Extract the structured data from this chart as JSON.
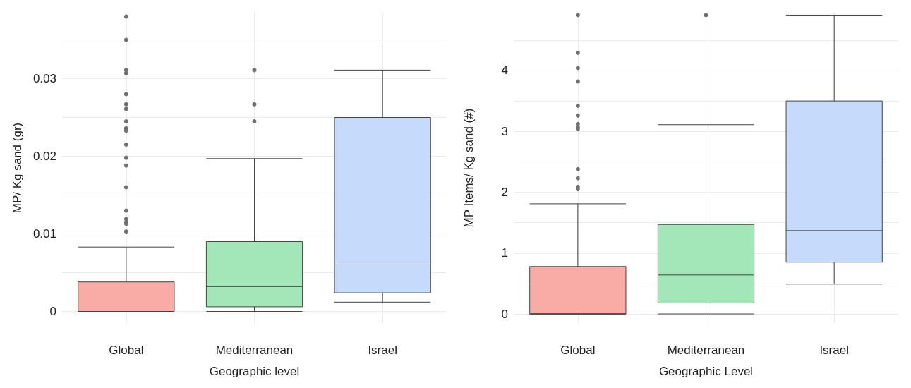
{
  "chart_data": [
    {
      "type": "box",
      "xlabel": "Geographic level",
      "ylabel": "MP/ Kg sand (gr)",
      "categories": [
        "Global",
        "Mediterranean",
        "Israel"
      ],
      "colors": [
        "#f9aca6",
        "#a3e6b8",
        "#c6dbfb"
      ],
      "boxes": [
        {
          "low": 0,
          "q1": 0,
          "median": 0,
          "q3": 0.0038,
          "high": 0.0083,
          "outliers": [
            0.0103,
            0.0113,
            0.0115,
            0.0119,
            0.013,
            0.016,
            0.0188,
            0.0198,
            0.0215,
            0.0233,
            0.0236,
            0.0245,
            0.0261,
            0.0267,
            0.028,
            0.0307,
            0.0311,
            0.035,
            0.038
          ]
        },
        {
          "low": 0,
          "q1": 0.0006,
          "median": 0.0032,
          "q3": 0.009,
          "high": 0.0197,
          "outliers": [
            0.0245,
            0.0267,
            0.0311
          ]
        },
        {
          "low": 0.0012,
          "q1": 0.0024,
          "median": 0.006,
          "q3": 0.025,
          "high": 0.0311
        }
      ],
      "ylim": [
        -0.0015,
        0.0385
      ],
      "yticks": [
        0,
        {
          "value": 0.005,
          "label": null
        },
        0.01,
        {
          "value": 0.015,
          "label": null
        },
        0.02,
        {
          "value": 0.025,
          "label": null
        },
        0.03,
        {
          "value": 0.035,
          "label": null
        }
      ],
      "grid": true
    },
    {
      "type": "box",
      "xlabel": "Geographic Level",
      "ylabel": "MP Items/ Kg sand (#)",
      "categories": [
        "Global",
        "Mediterranean",
        "Israel"
      ],
      "colors": [
        "#f9aca6",
        "#a3e6b8",
        "#c6dbfb"
      ],
      "boxes": [
        {
          "low": 0,
          "q1": 0,
          "median": 0,
          "q3": 0.78,
          "high": 1.81,
          "outliers": [
            2.05,
            2.09,
            2.23,
            2.38,
            3.04,
            3.07,
            3.12,
            3.26,
            3.42,
            3.82,
            4.04,
            4.29,
            4.91
          ]
        },
        {
          "low": 0,
          "q1": 0.18,
          "median": 0.64,
          "q3": 1.47,
          "high": 3.11,
          "outliers": [
            4.91
          ]
        },
        {
          "low": 0.49,
          "q1": 0.85,
          "median": 1.37,
          "q3": 3.5,
          "high": 4.91
        }
      ],
      "ylim": [
        -0.15,
        4.95
      ],
      "yticks": [
        0,
        {
          "value": 0.5,
          "label": null
        },
        1,
        {
          "value": 1.5,
          "label": null
        },
        2,
        {
          "value": 2.5,
          "label": null
        },
        3,
        {
          "value": 3.5,
          "label": null
        },
        4,
        {
          "value": 4.5,
          "label": null
        }
      ],
      "grid": true
    }
  ]
}
